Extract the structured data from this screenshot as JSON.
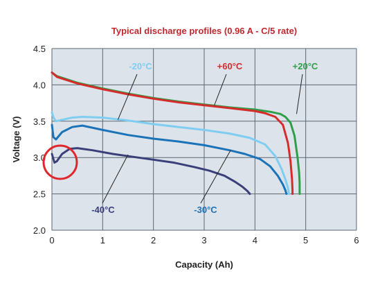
{
  "chart_data": {
    "type": "line",
    "title": "Typical discharge profiles (0.96 A - C/5 rate)",
    "xlabel": "Capacity (Ah)",
    "ylabel": "Voltage (V)",
    "xlim": [
      0,
      6
    ],
    "ylim": [
      2.0,
      4.5
    ],
    "x_ticks": [
      "0",
      "1",
      "2",
      "3",
      "4",
      "5",
      "6"
    ],
    "y_ticks": [
      "2.0",
      "2.5",
      "3.0",
      "3.5",
      "4.0",
      "4.5"
    ],
    "grid": true,
    "legend": "inline labels with leader lines",
    "colors": {
      "title": "#c0282e",
      "plot_background": "#dde3ea",
      "grid": "#5b6672",
      "highlight_circle": "#e0262b"
    },
    "series": [
      {
        "name": "+20°C",
        "color": "#2e9e48",
        "x": [
          0,
          0.1,
          0.5,
          1,
          1.5,
          2,
          2.5,
          3,
          3.5,
          4,
          4.3,
          4.5,
          4.6,
          4.7,
          4.78,
          4.84,
          4.87,
          4.88,
          4.88
        ],
        "y": [
          4.17,
          4.12,
          4.03,
          3.95,
          3.88,
          3.82,
          3.77,
          3.73,
          3.69,
          3.66,
          3.63,
          3.6,
          3.56,
          3.48,
          3.3,
          3.0,
          2.8,
          2.65,
          2.5
        ]
      },
      {
        "name": "+60°C",
        "color": "#d62b2b",
        "x": [
          0,
          0.1,
          0.5,
          1,
          1.5,
          2,
          2.5,
          3,
          3.5,
          4,
          4.2,
          4.4,
          4.55,
          4.65,
          4.7,
          4.73,
          4.74,
          4.74
        ],
        "y": [
          4.17,
          4.11,
          4.02,
          3.94,
          3.87,
          3.81,
          3.76,
          3.72,
          3.68,
          3.64,
          3.61,
          3.56,
          3.45,
          3.2,
          2.95,
          2.7,
          2.55,
          2.5
        ]
      },
      {
        "name": "-20°C",
        "color": "#7fcdf0",
        "x": [
          0,
          0.03,
          0.08,
          0.2,
          0.4,
          0.6,
          1,
          1.5,
          2,
          2.5,
          3,
          3.5,
          3.9,
          4.2,
          4.4,
          4.52,
          4.6,
          4.65,
          4.67
        ],
        "y": [
          3.62,
          3.55,
          3.5,
          3.52,
          3.55,
          3.56,
          3.55,
          3.51,
          3.46,
          3.42,
          3.38,
          3.33,
          3.27,
          3.18,
          3.02,
          2.85,
          2.7,
          2.58,
          2.5
        ]
      },
      {
        "name": "-30°C",
        "color": "#1a73b8",
        "x": [
          0,
          0.03,
          0.08,
          0.2,
          0.4,
          0.6,
          1,
          1.5,
          2,
          2.5,
          3,
          3.5,
          3.8,
          4.1,
          4.3,
          4.45,
          4.55,
          4.6,
          4.62
        ],
        "y": [
          3.45,
          3.28,
          3.25,
          3.35,
          3.42,
          3.44,
          3.38,
          3.31,
          3.26,
          3.22,
          3.17,
          3.1,
          3.05,
          2.98,
          2.88,
          2.75,
          2.63,
          2.55,
          2.5
        ]
      },
      {
        "name": "-40°C",
        "color": "#3a3f79",
        "x": [
          0,
          0.05,
          0.1,
          0.2,
          0.35,
          0.5,
          0.8,
          1.2,
          1.6,
          2,
          2.4,
          2.8,
          3.1,
          3.4,
          3.6,
          3.75,
          3.85,
          3.9
        ],
        "y": [
          3.05,
          2.93,
          2.95,
          3.05,
          3.12,
          3.13,
          3.1,
          3.05,
          3.01,
          2.97,
          2.93,
          2.87,
          2.82,
          2.75,
          2.67,
          2.6,
          2.54,
          2.5
        ]
      }
    ]
  }
}
